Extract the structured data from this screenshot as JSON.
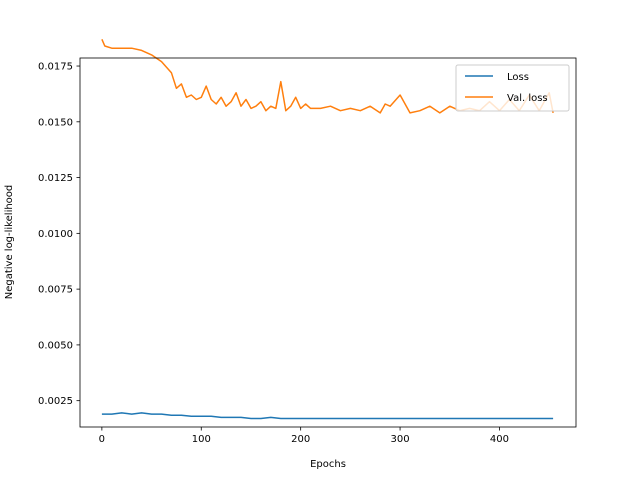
{
  "chart_data": {
    "type": "line",
    "title": "",
    "xlabel": "Epochs",
    "ylabel": "Negative log-likelihood",
    "xlim": [
      -22,
      477
    ],
    "ylim": [
      0.00132,
      0.01786
    ],
    "xticks": [
      0,
      100,
      200,
      300,
      400
    ],
    "yticks": [
      0.0025,
      0.005,
      0.0075,
      0.01,
      0.0125,
      0.015,
      0.0175
    ],
    "xtick_labels": [
      "0",
      "100",
      "200",
      "300",
      "400"
    ],
    "ytick_labels": [
      "0.0025",
      "0.0050",
      "0.0075",
      "0.0100",
      "0.0125",
      "0.0150",
      "0.0175"
    ],
    "grid": false,
    "legend_position": "top-right",
    "series": [
      {
        "name": "Loss",
        "color": "#1f77b4",
        "x": [
          0,
          10,
          20,
          30,
          40,
          50,
          60,
          70,
          80,
          90,
          100,
          110,
          120,
          130,
          140,
          150,
          160,
          170,
          180,
          190,
          200,
          210,
          220,
          230,
          240,
          250,
          260,
          270,
          280,
          290,
          300,
          310,
          320,
          330,
          340,
          350,
          360,
          370,
          380,
          390,
          400,
          410,
          420,
          430,
          440,
          450,
          454
        ],
        "y": [
          0.0019,
          0.0019,
          0.00195,
          0.0019,
          0.00195,
          0.0019,
          0.0019,
          0.00185,
          0.00185,
          0.0018,
          0.0018,
          0.0018,
          0.00175,
          0.00175,
          0.00175,
          0.0017,
          0.0017,
          0.00175,
          0.0017,
          0.0017,
          0.0017,
          0.0017,
          0.0017,
          0.0017,
          0.0017,
          0.0017,
          0.0017,
          0.0017,
          0.0017,
          0.0017,
          0.0017,
          0.0017,
          0.0017,
          0.0017,
          0.0017,
          0.0017,
          0.0017,
          0.0017,
          0.0017,
          0.0017,
          0.0017,
          0.0017,
          0.0017,
          0.0017,
          0.0017,
          0.0017,
          0.0017
        ]
      },
      {
        "name": "Val. loss",
        "color": "#ff7f0e",
        "x": [
          0,
          3,
          10,
          20,
          30,
          40,
          50,
          60,
          70,
          75,
          80,
          85,
          90,
          95,
          100,
          105,
          110,
          115,
          120,
          125,
          130,
          135,
          140,
          145,
          150,
          155,
          160,
          165,
          170,
          175,
          180,
          185,
          190,
          195,
          200,
          205,
          210,
          220,
          230,
          240,
          250,
          260,
          270,
          280,
          285,
          290,
          300,
          310,
          320,
          330,
          340,
          350,
          360,
          370,
          380,
          390,
          400,
          410,
          420,
          430,
          440,
          450,
          454
        ],
        "y": [
          0.0187,
          0.0184,
          0.0183,
          0.0183,
          0.0183,
          0.0182,
          0.018,
          0.0177,
          0.0172,
          0.0165,
          0.0167,
          0.0161,
          0.0162,
          0.016,
          0.0161,
          0.0166,
          0.016,
          0.0158,
          0.0161,
          0.0157,
          0.0159,
          0.0163,
          0.0157,
          0.016,
          0.0156,
          0.0157,
          0.0159,
          0.0155,
          0.0157,
          0.0156,
          0.0168,
          0.0155,
          0.0157,
          0.0161,
          0.0156,
          0.0158,
          0.0156,
          0.0156,
          0.0157,
          0.0155,
          0.0156,
          0.0155,
          0.0157,
          0.0154,
          0.0158,
          0.0157,
          0.0162,
          0.0154,
          0.0155,
          0.0157,
          0.0154,
          0.0157,
          0.0155,
          0.0156,
          0.0155,
          0.0159,
          0.0155,
          0.016,
          0.0155,
          0.0162,
          0.0155,
          0.0163,
          0.0154
        ]
      }
    ]
  }
}
